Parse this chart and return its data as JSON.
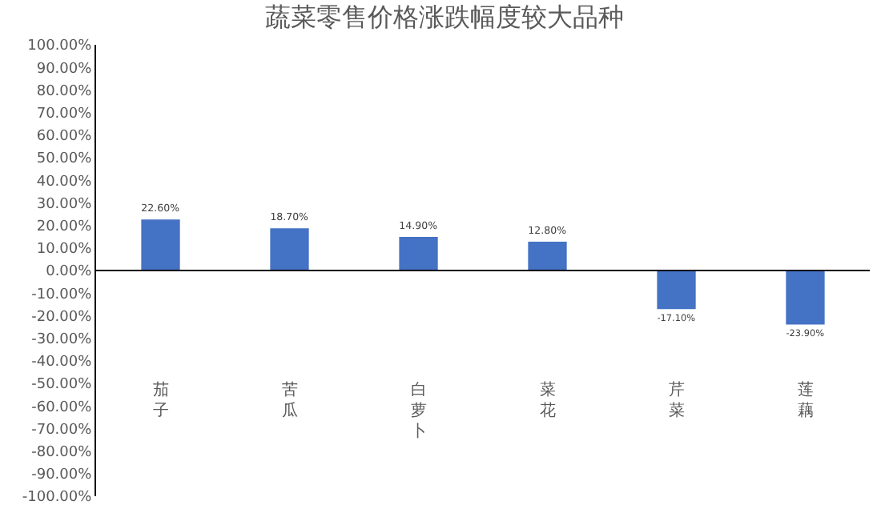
{
  "chart_data": {
    "type": "bar",
    "title": "蔬菜零售价格涨跌幅度较大品种",
    "categories": [
      "茄子",
      "苦瓜",
      "白萝卜",
      "菜花",
      "芹菜",
      "莲藕"
    ],
    "values": [
      22.6,
      18.7,
      14.9,
      12.8,
      -17.1,
      -23.9
    ],
    "value_labels": [
      "22.60%",
      "18.70%",
      "14.90%",
      "12.80%",
      "-17.10%",
      "-23.90%"
    ],
    "color": "#4472c4",
    "ylim": [
      -100,
      100
    ],
    "yticks": [
      {
        "value": 100,
        "label": "100.00%"
      },
      {
        "value": 90,
        "label": "90.00%"
      },
      {
        "value": 80,
        "label": "80.00%"
      },
      {
        "value": 70,
        "label": "70.00%"
      },
      {
        "value": 60,
        "label": "60.00%"
      },
      {
        "value": 50,
        "label": "50.00%"
      },
      {
        "value": 40,
        "label": "40.00%"
      },
      {
        "value": 30,
        "label": "30.00%"
      },
      {
        "value": 20,
        "label": "20.00%"
      },
      {
        "value": 10,
        "label": "10.00%"
      },
      {
        "value": 0,
        "label": "0.00%"
      },
      {
        "value": -10,
        "label": "-10.00%"
      },
      {
        "value": -20,
        "label": "-20.00%"
      },
      {
        "value": -30,
        "label": "-30.00%"
      },
      {
        "value": -40,
        "label": "-40.00%"
      },
      {
        "value": -50,
        "label": "-50.00%"
      },
      {
        "value": -60,
        "label": "-60.00%"
      },
      {
        "value": -70,
        "label": "-70.00%"
      },
      {
        "value": -80,
        "label": "-80.00%"
      },
      {
        "value": -90,
        "label": "-90.00%"
      },
      {
        "value": -100,
        "label": "-100.00%"
      }
    ],
    "ref_lines": [
      {
        "axis": "y",
        "value": 0,
        "color": "#000000"
      }
    ]
  }
}
